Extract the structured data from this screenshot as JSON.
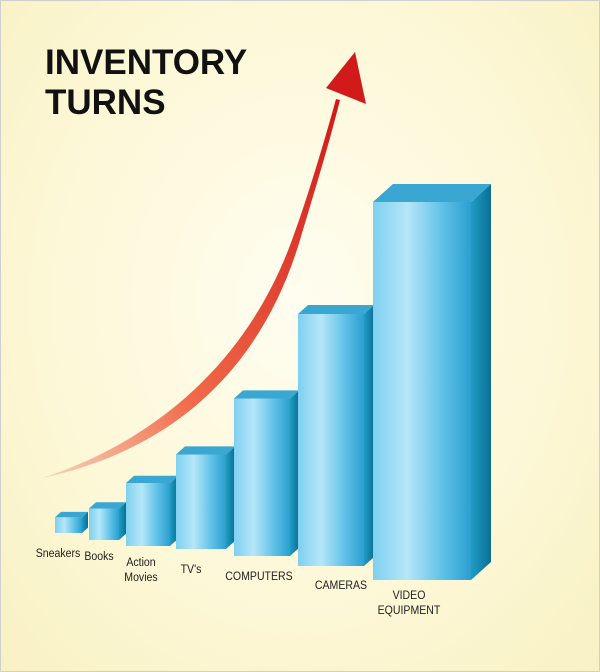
{
  "chart_data": {
    "type": "bar",
    "title_lines": [
      "INVENTORY",
      "TURNS"
    ],
    "categories": [
      [
        "Sneakers"
      ],
      [
        "Books"
      ],
      [
        "Action",
        "Movies"
      ],
      [
        "TV's"
      ],
      [
        "COMPUTERS"
      ],
      [
        "CAMERAS"
      ],
      [
        "VIDEO",
        "EQUIPMENT"
      ]
    ],
    "values": [
      1,
      2,
      4,
      6,
      10,
      16,
      24
    ],
    "xlabel": "",
    "ylabel": "",
    "grid": false,
    "legend": "none",
    "colors": {
      "bar_front_light": "#a8def5",
      "bar_front_mid": "#4fb8e0",
      "bar_front_dark": "#1a8fc2",
      "bar_side": "#0f7fa8",
      "bar_top": "#3aa7d4",
      "arrow_start": "#f7c0a0",
      "arrow_end": "#d41b1b"
    }
  }
}
